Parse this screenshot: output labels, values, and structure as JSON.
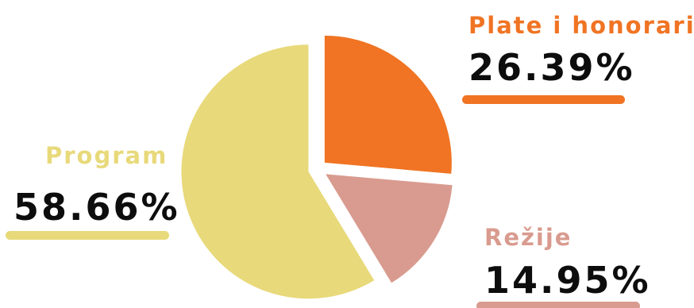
{
  "chart_data": {
    "type": "pie",
    "title": "",
    "slices": [
      {
        "label": "Plate i honorari",
        "value": 26.39,
        "value_label": "26.39%",
        "color": "#f07423"
      },
      {
        "label": "Režije",
        "value": 14.95,
        "value_label": "14.95%",
        "color": "#d99b8f"
      },
      {
        "label": "Program",
        "value": 58.66,
        "value_label": "58.66%",
        "color": "#e8d97a"
      }
    ],
    "exploded": true,
    "legend": "none",
    "label_text_color": "#0d0d0d"
  }
}
